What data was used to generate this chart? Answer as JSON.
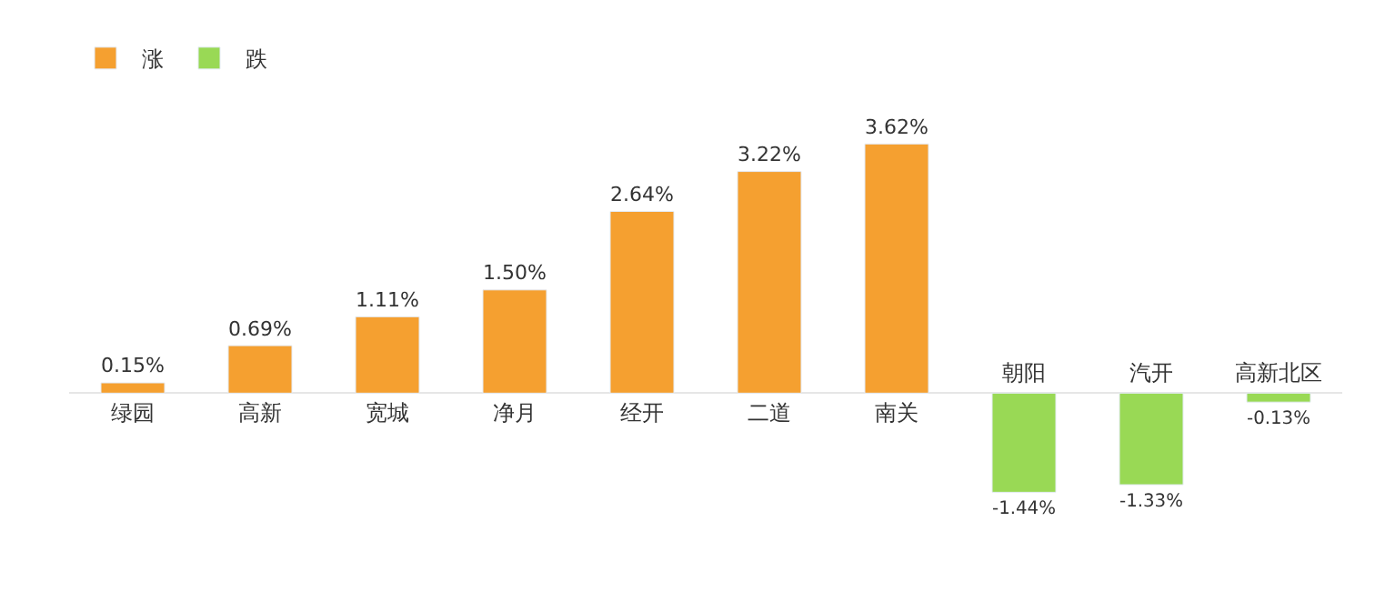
{
  "chart_data": {
    "type": "bar",
    "categories": [
      "绿园",
      "高新",
      "宽城",
      "净月",
      "经开",
      "二道",
      "南关",
      "朝阳",
      "汽开",
      "高新北区"
    ],
    "series": [
      {
        "name": "涨",
        "color": "#f5a030",
        "values": [
          0.15,
          0.69,
          1.11,
          1.5,
          2.64,
          3.22,
          3.62,
          null,
          null,
          null
        ],
        "value_labels": [
          "0.15%",
          "0.69%",
          "1.11%",
          "1.50%",
          "2.64%",
          "3.22%",
          "3.62%",
          null,
          null,
          null
        ]
      },
      {
        "name": "跌",
        "color": "#99d955",
        "values": [
          null,
          null,
          null,
          null,
          null,
          null,
          null,
          -1.44,
          -1.33,
          -0.13
        ],
        "value_labels": [
          null,
          null,
          null,
          null,
          null,
          null,
          null,
          "-1.44%",
          "-1.33%",
          "-0.13%"
        ]
      }
    ],
    "legend": "top left"
  }
}
